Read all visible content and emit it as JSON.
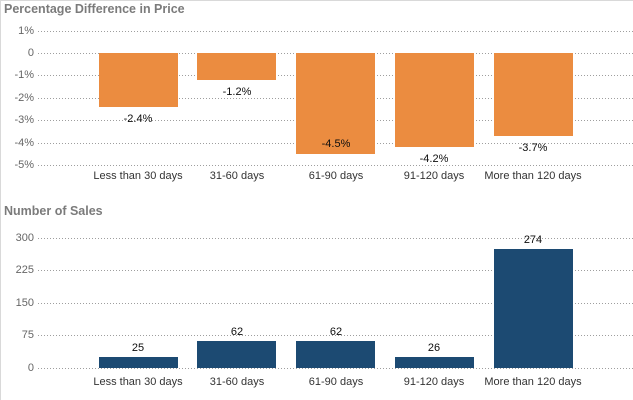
{
  "page": {
    "background": "#ffffff",
    "border_color": "#d9d9d9",
    "gridline_color": "#9e9e9e",
    "title_color": "#7b7b7b"
  },
  "chart_data": [
    {
      "type": "bar",
      "title": "Percentage Difference in Price",
      "categories": [
        "Less than 30 days",
        "31-60 days",
        "61-90 days",
        "91-120 days",
        "More than 120 days"
      ],
      "values": [
        -2.4,
        -1.2,
        -4.5,
        -4.2,
        -3.7
      ],
      "value_labels": [
        "-2.4%",
        "-1.2%",
        "-4.5%",
        "-4.2%",
        "-3.7%"
      ],
      "bar_color": "#EB8C40",
      "xlabel": "",
      "ylabel": "",
      "ylim": [
        -5,
        1
      ],
      "yticks": [
        {
          "value": 1,
          "label": "1%"
        },
        {
          "value": 0,
          "label": "0"
        },
        {
          "value": -1,
          "label": "-1%"
        },
        {
          "value": -2,
          "label": "-2%"
        },
        {
          "value": -3,
          "label": "-3%"
        },
        {
          "value": -4,
          "label": "-4%"
        },
        {
          "value": -5,
          "label": "-5%"
        }
      ],
      "grid": "dotted horizontal",
      "legend": "none"
    },
    {
      "type": "bar",
      "title": "Number of Sales",
      "categories": [
        "Less than 30 days",
        "31-60 days",
        "61-90 days",
        "91-120 days",
        "More than 120 days"
      ],
      "values": [
        25,
        62,
        62,
        26,
        274
      ],
      "value_labels": [
        "25",
        "62",
        "62",
        "26",
        "274"
      ],
      "bar_color": "#1C4A72",
      "xlabel": "",
      "ylabel": "",
      "ylim": [
        0,
        300
      ],
      "yticks": [
        {
          "value": 300,
          "label": "300"
        },
        {
          "value": 225,
          "label": "225"
        },
        {
          "value": 150,
          "label": "150"
        },
        {
          "value": 75,
          "label": "75"
        },
        {
          "value": 0,
          "label": "0"
        }
      ],
      "grid": "dotted horizontal",
      "legend": "none"
    }
  ]
}
